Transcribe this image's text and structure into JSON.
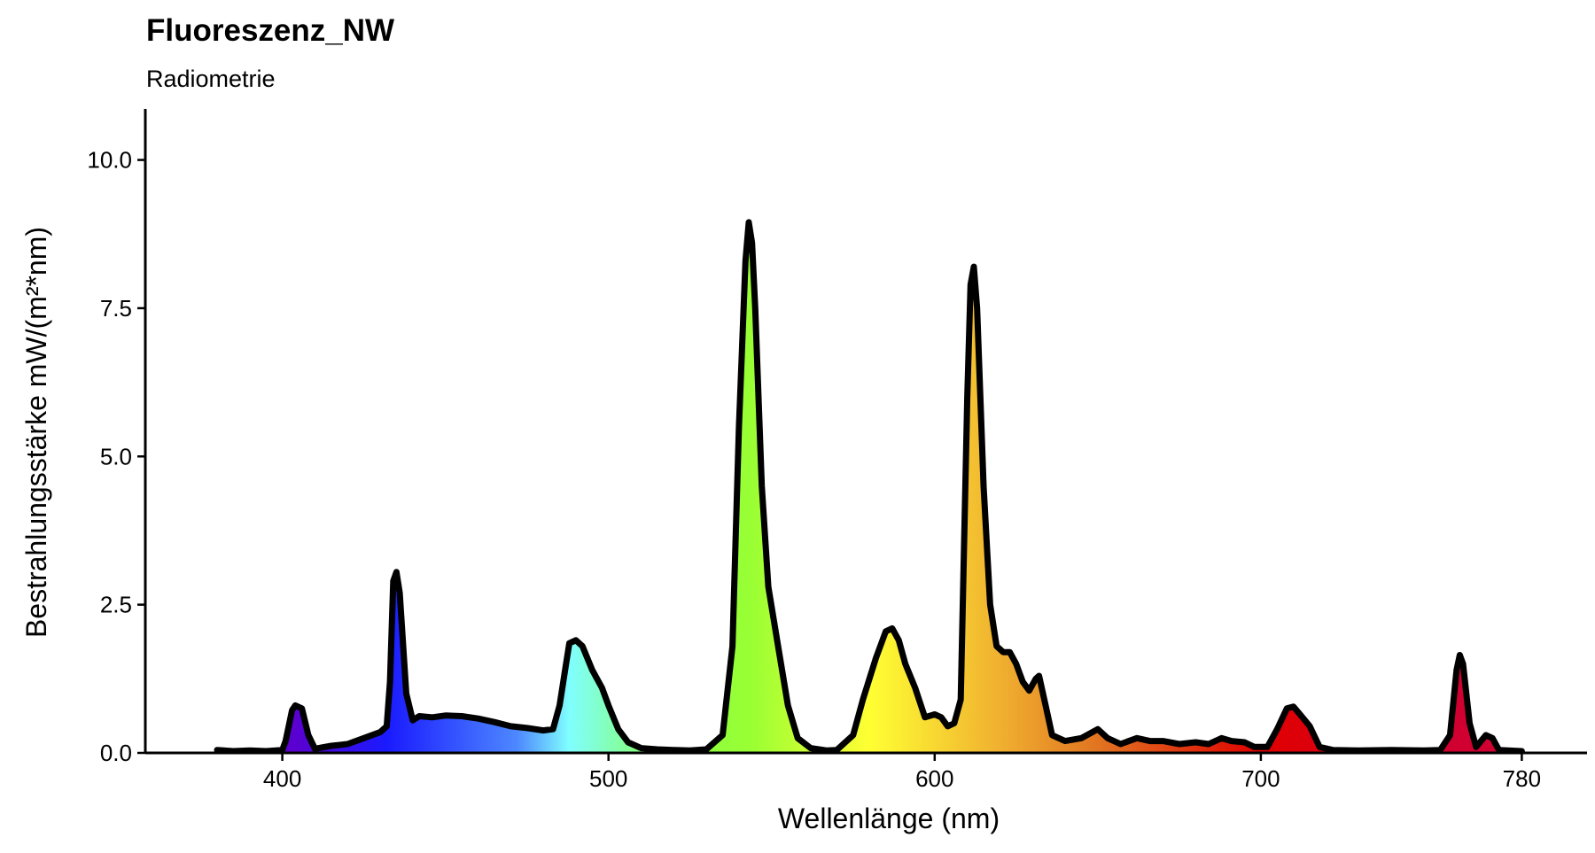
{
  "chart_data": {
    "type": "area",
    "title": "Fluoreszenz_NW",
    "subtitle": "Radiometrie",
    "x_label": "Wellenlänge (nm)",
    "y_label": "Bestrahlungsstärke  mW/(m²*nm)",
    "xlim": [
      358,
      800
    ],
    "ylim": [
      0,
      10.86
    ],
    "xticks": [
      400,
      500,
      600,
      700,
      780
    ],
    "yticks": [
      {
        "value": 0,
        "label": "0.0"
      },
      {
        "value": 2.5,
        "label": "2.5"
      },
      {
        "value": 5,
        "label": "5.0"
      },
      {
        "value": 7.5,
        "label": "7.5"
      },
      {
        "value": 10,
        "label": "10.0"
      }
    ],
    "line_color": "#000000",
    "x": [
      380,
      385,
      390,
      395,
      400,
      401,
      403,
      404,
      406,
      408,
      410,
      415,
      420,
      425,
      430,
      432,
      433,
      434,
      435,
      436,
      438,
      440,
      442,
      446,
      450,
      455,
      460,
      465,
      470,
      475,
      480,
      483,
      485,
      487,
      488,
      490,
      492,
      495,
      498,
      500,
      503,
      506,
      510,
      515,
      520,
      525,
      530,
      535,
      538,
      540,
      542,
      543,
      544,
      545,
      547,
      549,
      552,
      555,
      558,
      562,
      567,
      570,
      575,
      578,
      582,
      585,
      587,
      589,
      591,
      594,
      597,
      600,
      602,
      604,
      606,
      608,
      610,
      611,
      612,
      613,
      615,
      617,
      619,
      621,
      623,
      625,
      627,
      629,
      631,
      632,
      634,
      636,
      640,
      645,
      650,
      653,
      657,
      662,
      666,
      670,
      675,
      680,
      684,
      688,
      691,
      695,
      698,
      702,
      705,
      708,
      710,
      712,
      715,
      718,
      722,
      730,
      740,
      750,
      755,
      758,
      760,
      761,
      762,
      764,
      766,
      769,
      771,
      773,
      780
    ],
    "values": [
      0.05,
      0.03,
      0.04,
      0.03,
      0.05,
      0.2,
      0.72,
      0.8,
      0.75,
      0.3,
      0.07,
      0.12,
      0.15,
      0.25,
      0.35,
      0.45,
      1.2,
      2.9,
      3.05,
      2.7,
      1.0,
      0.55,
      0.62,
      0.6,
      0.63,
      0.62,
      0.58,
      0.52,
      0.45,
      0.42,
      0.38,
      0.4,
      0.8,
      1.5,
      1.85,
      1.9,
      1.8,
      1.4,
      1.1,
      0.8,
      0.4,
      0.18,
      0.08,
      0.06,
      0.05,
      0.04,
      0.06,
      0.3,
      1.8,
      5.5,
      8.3,
      8.95,
      8.6,
      7.5,
      4.5,
      2.8,
      1.8,
      0.8,
      0.25,
      0.08,
      0.04,
      0.05,
      0.3,
      0.9,
      1.6,
      2.05,
      2.1,
      1.9,
      1.5,
      1.1,
      0.6,
      0.65,
      0.6,
      0.45,
      0.5,
      0.9,
      6.0,
      7.9,
      8.2,
      7.5,
      4.5,
      2.5,
      1.8,
      1.7,
      1.7,
      1.5,
      1.2,
      1.05,
      1.25,
      1.3,
      0.8,
      0.3,
      0.2,
      0.25,
      0.4,
      0.25,
      0.15,
      0.25,
      0.2,
      0.2,
      0.15,
      0.18,
      0.15,
      0.25,
      0.2,
      0.18,
      0.1,
      0.1,
      0.4,
      0.75,
      0.78,
      0.65,
      0.45,
      0.1,
      0.05,
      0.04,
      0.05,
      0.04,
      0.05,
      0.3,
      1.4,
      1.65,
      1.5,
      0.5,
      0.1,
      0.3,
      0.25,
      0.05,
      0.03
    ]
  }
}
